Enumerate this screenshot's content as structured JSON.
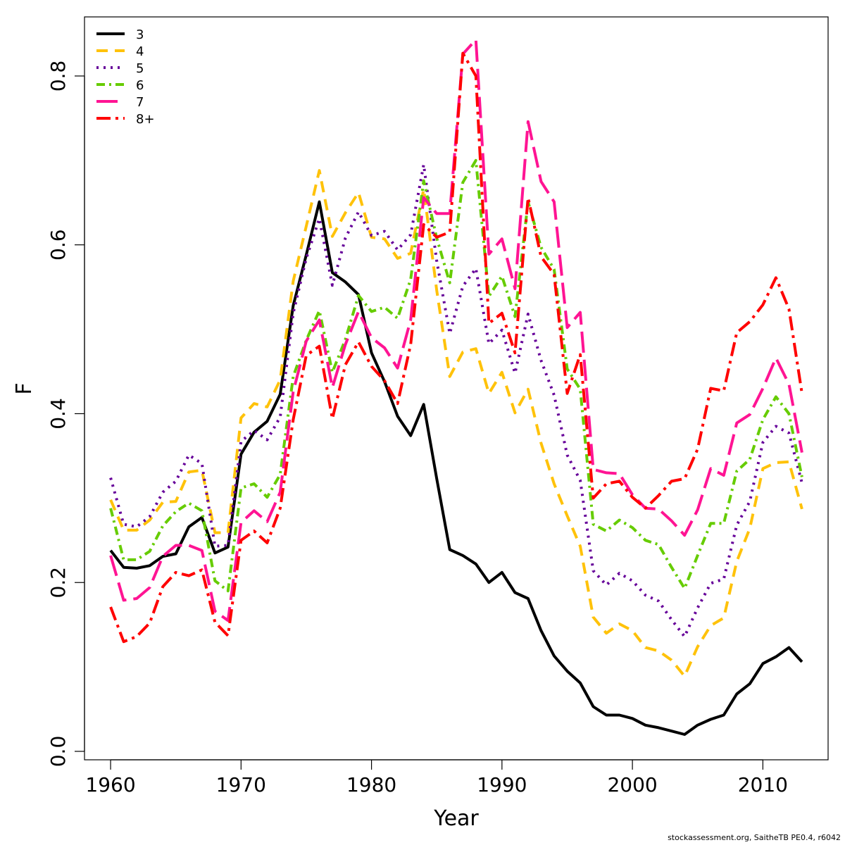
{
  "chart_data": {
    "type": "line",
    "xlabel": "Year",
    "ylabel": "F",
    "xlim": [
      1958,
      2015
    ],
    "ylim": [
      -0.01,
      0.87
    ],
    "x_ticks": [
      1960,
      1970,
      1980,
      1990,
      2000,
      2010
    ],
    "y_ticks": [
      "0.0",
      "0.2",
      "0.4",
      "0.6",
      "0.8"
    ],
    "grid": false,
    "legend_position": "top-left",
    "x": [
      1960,
      1961,
      1962,
      1963,
      1964,
      1965,
      1966,
      1967,
      1968,
      1969,
      1970,
      1971,
      1972,
      1973,
      1974,
      1975,
      1976,
      1977,
      1978,
      1979,
      1980,
      1981,
      1982,
      1983,
      1984,
      1985,
      1986,
      1987,
      1988,
      1989,
      1990,
      1991,
      1992,
      1993,
      1994,
      1995,
      1996,
      1997,
      1998,
      1999,
      2000,
      2001,
      2002,
      2003,
      2004,
      2005,
      2006,
      2007,
      2008,
      2009,
      2010,
      2011,
      2012,
      2013
    ],
    "series": [
      {
        "name": "3",
        "color": "#000000",
        "dash": "",
        "values": [
          0.238,
          0.218,
          0.217,
          0.22,
          0.231,
          0.234,
          0.266,
          0.277,
          0.235,
          0.242,
          0.352,
          0.378,
          0.391,
          0.423,
          0.528,
          0.588,
          0.651,
          0.567,
          0.556,
          0.541,
          0.472,
          0.438,
          0.397,
          0.374,
          0.411,
          0.323,
          0.239,
          0.232,
          0.222,
          0.2,
          0.212,
          0.188,
          0.181,
          0.143,
          0.113,
          0.095,
          0.081,
          0.053,
          0.043,
          0.043,
          0.039,
          0.031,
          0.028,
          0.024,
          0.02,
          0.031,
          0.038,
          0.043,
          0.068,
          0.08,
          0.104,
          0.112,
          0.123,
          0.106
        ]
      },
      {
        "name": "4",
        "color": "#FFC20A",
        "dash": "16 10",
        "values": [
          0.298,
          0.262,
          0.262,
          0.274,
          0.295,
          0.296,
          0.331,
          0.333,
          0.259,
          0.259,
          0.395,
          0.412,
          0.408,
          0.44,
          0.557,
          0.622,
          0.688,
          0.61,
          0.638,
          0.662,
          0.609,
          0.607,
          0.584,
          0.59,
          0.666,
          0.546,
          0.444,
          0.473,
          0.477,
          0.424,
          0.449,
          0.401,
          0.429,
          0.365,
          0.317,
          0.279,
          0.243,
          0.159,
          0.14,
          0.151,
          0.143,
          0.123,
          0.119,
          0.108,
          0.089,
          0.124,
          0.149,
          0.158,
          0.225,
          0.264,
          0.335,
          0.342,
          0.343,
          0.287
        ]
      },
      {
        "name": "5",
        "color": "#660099",
        "dash": "3 7",
        "values": [
          0.324,
          0.269,
          0.266,
          0.278,
          0.307,
          0.32,
          0.351,
          0.341,
          0.243,
          0.244,
          0.367,
          0.38,
          0.369,
          0.396,
          0.519,
          0.584,
          0.631,
          0.552,
          0.608,
          0.639,
          0.611,
          0.616,
          0.594,
          0.612,
          0.695,
          0.581,
          0.495,
          0.551,
          0.572,
          0.483,
          0.499,
          0.448,
          0.518,
          0.463,
          0.422,
          0.351,
          0.321,
          0.214,
          0.197,
          0.211,
          0.202,
          0.185,
          0.178,
          0.156,
          0.136,
          0.17,
          0.199,
          0.204,
          0.268,
          0.296,
          0.366,
          0.385,
          0.377,
          0.318
        ]
      },
      {
        "name": "6",
        "color": "#66CC00",
        "dash": "12 6 3 6",
        "values": [
          0.288,
          0.227,
          0.227,
          0.237,
          0.267,
          0.284,
          0.294,
          0.285,
          0.202,
          0.19,
          0.312,
          0.317,
          0.301,
          0.328,
          0.444,
          0.487,
          0.522,
          0.449,
          0.488,
          0.54,
          0.521,
          0.526,
          0.513,
          0.559,
          0.676,
          0.608,
          0.555,
          0.674,
          0.7,
          0.539,
          0.563,
          0.515,
          0.651,
          0.597,
          0.571,
          0.453,
          0.429,
          0.269,
          0.261,
          0.274,
          0.265,
          0.25,
          0.245,
          0.218,
          0.193,
          0.232,
          0.27,
          0.27,
          0.332,
          0.346,
          0.393,
          0.42,
          0.4,
          0.325
        ]
      },
      {
        "name": "7",
        "color": "#FF1493",
        "dash": "30 10",
        "values": [
          0.232,
          0.179,
          0.181,
          0.194,
          0.231,
          0.244,
          0.244,
          0.238,
          0.166,
          0.155,
          0.271,
          0.285,
          0.272,
          0.307,
          0.426,
          0.486,
          0.511,
          0.431,
          0.482,
          0.521,
          0.49,
          0.478,
          0.454,
          0.511,
          0.656,
          0.637,
          0.637,
          0.826,
          0.843,
          0.589,
          0.607,
          0.548,
          0.746,
          0.675,
          0.651,
          0.502,
          0.52,
          0.334,
          0.33,
          0.329,
          0.304,
          0.288,
          0.287,
          0.273,
          0.256,
          0.286,
          0.335,
          0.327,
          0.389,
          0.399,
          0.43,
          0.466,
          0.435,
          0.354
        ]
      },
      {
        "name": "8+",
        "color": "#FF0000",
        "dash": "20 7 4 7",
        "values": [
          0.171,
          0.13,
          0.136,
          0.152,
          0.195,
          0.212,
          0.208,
          0.215,
          0.153,
          0.137,
          0.25,
          0.261,
          0.247,
          0.288,
          0.393,
          0.469,
          0.48,
          0.394,
          0.458,
          0.485,
          0.456,
          0.439,
          0.412,
          0.482,
          0.624,
          0.609,
          0.615,
          0.827,
          0.8,
          0.507,
          0.519,
          0.472,
          0.656,
          0.586,
          0.565,
          0.424,
          0.47,
          0.3,
          0.317,
          0.32,
          0.301,
          0.288,
          0.303,
          0.32,
          0.323,
          0.358,
          0.43,
          0.427,
          0.496,
          0.509,
          0.529,
          0.561,
          0.524,
          0.424
        ]
      }
    ]
  },
  "footer": {
    "note": "stockassessment.org, SaitheTB  PE0.4, r6042"
  }
}
